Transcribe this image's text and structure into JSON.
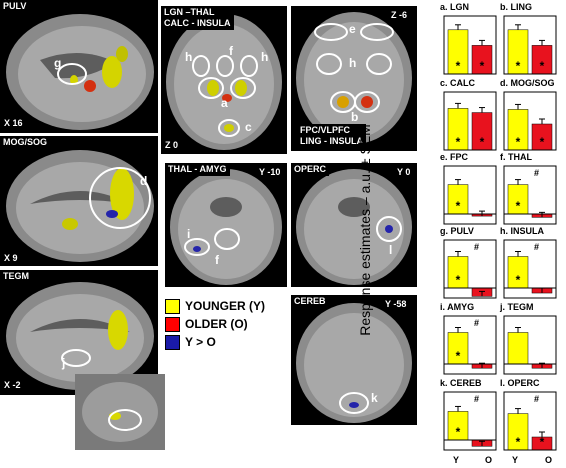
{
  "panels": {
    "pulv": {
      "label": "PULV",
      "coord": "X 16",
      "roi": "g"
    },
    "mog": {
      "label": "MOG/SOG",
      "coord": "X 9",
      "roi": "d"
    },
    "tegm": {
      "label": "TEGM",
      "coord": "X -2",
      "roi": "j"
    },
    "lgn": {
      "label": "LGN –THAL\nCALC - INSULA",
      "coord": "Z 0",
      "rois": [
        "h",
        "f",
        "h",
        "a",
        "c"
      ]
    },
    "fpc": {
      "label_top": "Z -6",
      "label": "FPC/VLPFC\nLING - INSULA",
      "rois": [
        "e",
        "h",
        "b"
      ]
    },
    "thal": {
      "label": "THAL - AMYG",
      "coord": "Y -10",
      "rois": [
        "i",
        "f"
      ]
    },
    "operc": {
      "label": "OPERC",
      "coord": "Y 0",
      "roi": "l"
    },
    "cereb": {
      "label": "CEREB",
      "coord": "Y -58",
      "roi": "k"
    }
  },
  "legend": [
    {
      "label": "YOUNGER (Y)",
      "color": "#ffff00"
    },
    {
      "label": "OLDER (O)",
      "color": "#ff0000"
    },
    {
      "label": "Y > O",
      "color": "#1a1aa8"
    }
  ],
  "y_axis_label": "Response estimates – a.u. ± SEM",
  "x_labels": [
    "Y",
    "O"
  ],
  "colors": {
    "younger": "#ffff00",
    "older": "#e8121e",
    "blob_blue": "#2222aa"
  },
  "chart_data": {
    "type": "bar",
    "categories": [
      "Y",
      "O"
    ],
    "panels": [
      {
        "title": "a. LGN",
        "values": [
          0.85,
          0.55
        ],
        "stars": [
          "Y",
          "O"
        ],
        "hash": false
      },
      {
        "title": "b. LING",
        "values": [
          0.85,
          0.55
        ],
        "stars": [
          "Y",
          "O"
        ],
        "hash": false
      },
      {
        "title": "c. CALC",
        "values": [
          0.8,
          0.72
        ],
        "stars": [
          "Y",
          "O"
        ],
        "hash": false
      },
      {
        "title": "d. MOG/SOG",
        "values": [
          0.78,
          0.5
        ],
        "stars": [
          "Y",
          "O"
        ],
        "hash": false
      },
      {
        "title": "e. FPC",
        "values": [
          0.7,
          -0.05
        ],
        "stars": [
          "Y"
        ],
        "hash": false
      },
      {
        "title": "f. THAL",
        "values": [
          0.7,
          -0.08
        ],
        "stars": [
          "Y"
        ],
        "hash": true
      },
      {
        "title": "g. PULV",
        "values": [
          0.75,
          -0.2
        ],
        "stars": [
          "Y"
        ],
        "hash": true
      },
      {
        "title": "h. INSULA",
        "values": [
          0.75,
          -0.12
        ],
        "stars": [
          "Y"
        ],
        "hash": true
      },
      {
        "title": "i. AMYG",
        "values": [
          0.75,
          -0.1
        ],
        "stars": [
          "Y"
        ],
        "hash": true
      },
      {
        "title": "j. TEGM",
        "values": [
          0.75,
          -0.1
        ],
        "stars": [],
        "hash": false
      },
      {
        "title": "k. CEREB",
        "values": [
          0.68,
          -0.15
        ],
        "stars": [
          "Y"
        ],
        "hash": true
      },
      {
        "title": "l. OPERC",
        "values": [
          0.7,
          0.25
        ],
        "stars": [
          "Y",
          "O"
        ],
        "hash": true
      }
    ]
  }
}
